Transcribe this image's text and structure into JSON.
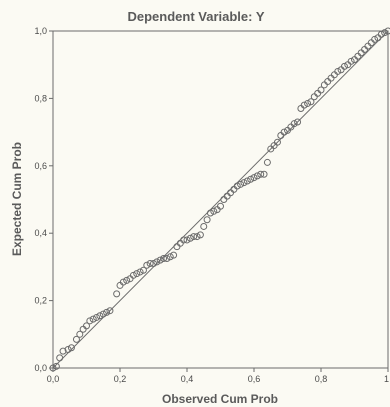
{
  "chart_data": {
    "type": "scatter",
    "title": "Dependent Variable: Y",
    "xlabel": "Observed Cum Prob",
    "ylabel": "Expected Cum Prob",
    "xlim": [
      0,
      1
    ],
    "ylim": [
      0,
      1
    ],
    "x_ticks": [
      "0,0",
      "0,2",
      "0,4",
      "0,6",
      "0,8",
      "1"
    ],
    "y_ticks": [
      "0,0",
      "0,2",
      "0,4",
      "0,6",
      "0,8",
      "1,0"
    ],
    "x_tick_values": [
      0,
      0.2,
      0.4,
      0.6,
      0.8,
      1
    ],
    "y_tick_values": [
      0,
      0.2,
      0.4,
      0.6,
      0.8,
      1
    ],
    "grid": false,
    "reference_line": {
      "from": [
        0,
        0
      ],
      "to": [
        1,
        1
      ]
    },
    "colors": {
      "marker_stroke": "#6b6b6b",
      "marker_fill": "none",
      "reference_line": "#6b6b6b",
      "plot_border": "#6b6b6b",
      "background": "#fbfaf3",
      "text": "#5a5a5a"
    },
    "points": [
      {
        "x": 0.0,
        "y": 0.0
      },
      {
        "x": 0.01,
        "y": 0.005
      },
      {
        "x": 0.02,
        "y": 0.03
      },
      {
        "x": 0.03,
        "y": 0.05
      },
      {
        "x": 0.045,
        "y": 0.055
      },
      {
        "x": 0.055,
        "y": 0.06
      },
      {
        "x": 0.07,
        "y": 0.085
      },
      {
        "x": 0.08,
        "y": 0.1
      },
      {
        "x": 0.09,
        "y": 0.115
      },
      {
        "x": 0.1,
        "y": 0.125
      },
      {
        "x": 0.11,
        "y": 0.14
      },
      {
        "x": 0.12,
        "y": 0.145
      },
      {
        "x": 0.13,
        "y": 0.15
      },
      {
        "x": 0.14,
        "y": 0.155
      },
      {
        "x": 0.15,
        "y": 0.16
      },
      {
        "x": 0.16,
        "y": 0.165
      },
      {
        "x": 0.17,
        "y": 0.17
      },
      {
        "x": 0.19,
        "y": 0.22
      },
      {
        "x": 0.2,
        "y": 0.245
      },
      {
        "x": 0.21,
        "y": 0.255
      },
      {
        "x": 0.22,
        "y": 0.26
      },
      {
        "x": 0.23,
        "y": 0.265
      },
      {
        "x": 0.24,
        "y": 0.275
      },
      {
        "x": 0.25,
        "y": 0.28
      },
      {
        "x": 0.26,
        "y": 0.285
      },
      {
        "x": 0.27,
        "y": 0.29
      },
      {
        "x": 0.28,
        "y": 0.305
      },
      {
        "x": 0.29,
        "y": 0.31
      },
      {
        "x": 0.3,
        "y": 0.31
      },
      {
        "x": 0.31,
        "y": 0.315
      },
      {
        "x": 0.32,
        "y": 0.32
      },
      {
        "x": 0.33,
        "y": 0.325
      },
      {
        "x": 0.34,
        "y": 0.325
      },
      {
        "x": 0.35,
        "y": 0.33
      },
      {
        "x": 0.36,
        "y": 0.335
      },
      {
        "x": 0.37,
        "y": 0.36
      },
      {
        "x": 0.38,
        "y": 0.37
      },
      {
        "x": 0.39,
        "y": 0.38
      },
      {
        "x": 0.4,
        "y": 0.38
      },
      {
        "x": 0.41,
        "y": 0.385
      },
      {
        "x": 0.42,
        "y": 0.39
      },
      {
        "x": 0.43,
        "y": 0.39
      },
      {
        "x": 0.44,
        "y": 0.395
      },
      {
        "x": 0.45,
        "y": 0.42
      },
      {
        "x": 0.46,
        "y": 0.44
      },
      {
        "x": 0.47,
        "y": 0.46
      },
      {
        "x": 0.48,
        "y": 0.465
      },
      {
        "x": 0.49,
        "y": 0.47
      },
      {
        "x": 0.5,
        "y": 0.48
      },
      {
        "x": 0.51,
        "y": 0.5
      },
      {
        "x": 0.52,
        "y": 0.51
      },
      {
        "x": 0.53,
        "y": 0.52
      },
      {
        "x": 0.54,
        "y": 0.53
      },
      {
        "x": 0.55,
        "y": 0.54
      },
      {
        "x": 0.56,
        "y": 0.545
      },
      {
        "x": 0.57,
        "y": 0.55
      },
      {
        "x": 0.58,
        "y": 0.555
      },
      {
        "x": 0.59,
        "y": 0.56
      },
      {
        "x": 0.6,
        "y": 0.565
      },
      {
        "x": 0.61,
        "y": 0.57
      },
      {
        "x": 0.62,
        "y": 0.575
      },
      {
        "x": 0.63,
        "y": 0.575
      },
      {
        "x": 0.64,
        "y": 0.61
      },
      {
        "x": 0.65,
        "y": 0.65
      },
      {
        "x": 0.66,
        "y": 0.66
      },
      {
        "x": 0.67,
        "y": 0.67
      },
      {
        "x": 0.68,
        "y": 0.69
      },
      {
        "x": 0.69,
        "y": 0.7
      },
      {
        "x": 0.7,
        "y": 0.705
      },
      {
        "x": 0.71,
        "y": 0.715
      },
      {
        "x": 0.72,
        "y": 0.725
      },
      {
        "x": 0.73,
        "y": 0.73
      },
      {
        "x": 0.74,
        "y": 0.77
      },
      {
        "x": 0.75,
        "y": 0.78
      },
      {
        "x": 0.76,
        "y": 0.785
      },
      {
        "x": 0.77,
        "y": 0.79
      },
      {
        "x": 0.78,
        "y": 0.805
      },
      {
        "x": 0.79,
        "y": 0.815
      },
      {
        "x": 0.8,
        "y": 0.825
      },
      {
        "x": 0.81,
        "y": 0.84
      },
      {
        "x": 0.82,
        "y": 0.85
      },
      {
        "x": 0.83,
        "y": 0.86
      },
      {
        "x": 0.84,
        "y": 0.87
      },
      {
        "x": 0.85,
        "y": 0.88
      },
      {
        "x": 0.86,
        "y": 0.885
      },
      {
        "x": 0.87,
        "y": 0.895
      },
      {
        "x": 0.88,
        "y": 0.9
      },
      {
        "x": 0.89,
        "y": 0.91
      },
      {
        "x": 0.9,
        "y": 0.915
      },
      {
        "x": 0.91,
        "y": 0.925
      },
      {
        "x": 0.92,
        "y": 0.935
      },
      {
        "x": 0.93,
        "y": 0.945
      },
      {
        "x": 0.94,
        "y": 0.955
      },
      {
        "x": 0.95,
        "y": 0.965
      },
      {
        "x": 0.96,
        "y": 0.975
      },
      {
        "x": 0.97,
        "y": 0.98
      },
      {
        "x": 0.98,
        "y": 0.99
      },
      {
        "x": 0.99,
        "y": 0.995
      },
      {
        "x": 1.0,
        "y": 1.0
      }
    ]
  }
}
